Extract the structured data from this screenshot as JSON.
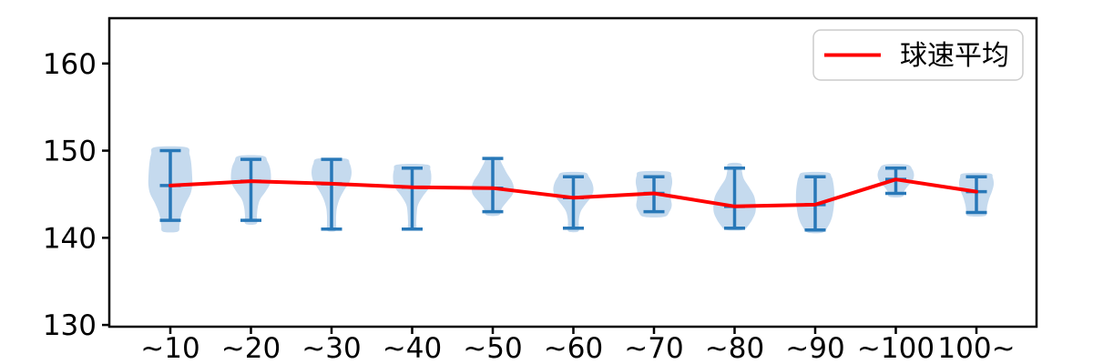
{
  "chart_data": {
    "type": "violin",
    "title": "",
    "xlabel": "",
    "ylabel": "",
    "grid": false,
    "categories": [
      "~10",
      "~20",
      "~30",
      "~40",
      "~50",
      "~60",
      "~70",
      "~80",
      "~90",
      "~100",
      "100~"
    ],
    "yticks": [
      130,
      140,
      150,
      160
    ],
    "ylim": [
      129.8,
      165.2
    ],
    "legend": {
      "label": "球速平均",
      "position": "upper right",
      "line_color": "#ff0000"
    },
    "mean_line": {
      "name": "球速平均",
      "color": "#ff0000",
      "values": [
        146.0,
        146.5,
        146.2,
        145.8,
        145.7,
        144.6,
        145.1,
        143.6,
        143.8,
        146.7,
        145.3
      ]
    },
    "violins": [
      {
        "category": "~10",
        "min": 142.0,
        "max": 150.0,
        "mean": 146.0,
        "profile": [
          [
            150.4,
            17
          ],
          [
            149.6,
            21
          ],
          [
            148.5,
            23
          ],
          [
            147.0,
            24
          ],
          [
            146.0,
            24
          ],
          [
            145.0,
            22
          ],
          [
            144.0,
            17
          ],
          [
            143.0,
            13
          ],
          [
            142.2,
            11
          ],
          [
            141.4,
            10
          ],
          [
            140.7,
            8
          ]
        ]
      },
      {
        "category": "~20",
        "min": 142.0,
        "max": 149.0,
        "mean": 146.5,
        "profile": [
          [
            149.4,
            13
          ],
          [
            148.8,
            18
          ],
          [
            148.0,
            21
          ],
          [
            147.0,
            22
          ],
          [
            146.2,
            21
          ],
          [
            145.3,
            16
          ],
          [
            144.4,
            10
          ],
          [
            143.5,
            7.5
          ],
          [
            142.5,
            6.5
          ],
          [
            141.6,
            6
          ]
        ]
      },
      {
        "category": "~30",
        "min": 141.0,
        "max": 149.0,
        "mean": 146.2,
        "profile": [
          [
            149.1,
            15
          ],
          [
            148.5,
            20
          ],
          [
            147.5,
            22
          ],
          [
            146.5,
            20
          ],
          [
            145.5,
            14
          ],
          [
            144.5,
            9
          ],
          [
            143.5,
            6
          ],
          [
            142.5,
            5
          ],
          [
            141.5,
            5
          ],
          [
            140.8,
            4.5
          ]
        ]
      },
      {
        "category": "~40",
        "min": 141.0,
        "max": 148.0,
        "mean": 145.8,
        "profile": [
          [
            148.4,
            16
          ],
          [
            147.8,
            20
          ],
          [
            146.8,
            21
          ],
          [
            145.8,
            19
          ],
          [
            144.8,
            12
          ],
          [
            143.8,
            6.5
          ],
          [
            142.8,
            5
          ],
          [
            141.8,
            4.5
          ],
          [
            141.0,
            4
          ]
        ]
      },
      {
        "category": "~50",
        "min": 143.0,
        "max": 149.1,
        "mean": 145.7,
        "profile": [
          [
            149.2,
            6
          ],
          [
            148.5,
            10
          ],
          [
            147.5,
            15
          ],
          [
            146.5,
            21
          ],
          [
            145.8,
            23
          ],
          [
            145.0,
            22
          ],
          [
            144.2,
            16
          ],
          [
            143.4,
            10
          ],
          [
            142.6,
            7
          ]
        ]
      },
      {
        "category": "~60",
        "min": 141.1,
        "max": 147.0,
        "mean": 144.6,
        "profile": [
          [
            147.5,
            12
          ],
          [
            147.0,
            17
          ],
          [
            146.2,
            21
          ],
          [
            145.4,
            22
          ],
          [
            144.6,
            19
          ],
          [
            143.8,
            13
          ],
          [
            143.0,
            8
          ],
          [
            142.0,
            6
          ],
          [
            141.2,
            6
          ],
          [
            140.7,
            5
          ]
        ]
      },
      {
        "category": "~70",
        "min": 143.0,
        "max": 147.0,
        "mean": 145.1,
        "profile": [
          [
            147.6,
            15
          ],
          [
            147.1,
            19
          ],
          [
            146.3,
            20
          ],
          [
            145.4,
            18.5
          ],
          [
            144.5,
            18.5
          ],
          [
            143.7,
            19.5
          ],
          [
            143.0,
            17
          ],
          [
            142.4,
            11
          ]
        ]
      },
      {
        "category": "~80",
        "min": 141.1,
        "max": 148.0,
        "mean": 143.6,
        "profile": [
          [
            148.5,
            7
          ],
          [
            147.7,
            8
          ],
          [
            146.8,
            10
          ],
          [
            145.8,
            16
          ],
          [
            144.9,
            21
          ],
          [
            144.0,
            23
          ],
          [
            143.0,
            23
          ],
          [
            142.2,
            20
          ],
          [
            141.4,
            15
          ],
          [
            140.9,
            9
          ]
        ]
      },
      {
        "category": "~90",
        "min": 140.9,
        "max": 147.0,
        "mean": 143.8,
        "profile": [
          [
            147.5,
            13
          ],
          [
            147.0,
            18
          ],
          [
            146.2,
            20
          ],
          [
            145.2,
            21
          ],
          [
            144.2,
            21
          ],
          [
            143.2,
            20
          ],
          [
            142.2,
            18
          ],
          [
            141.3,
            14
          ],
          [
            140.6,
            8
          ]
        ]
      },
      {
        "category": "~100",
        "min": 145.1,
        "max": 148.0,
        "mean": 146.7,
        "profile": [
          [
            148.4,
            12
          ],
          [
            147.9,
            18
          ],
          [
            147.2,
            20
          ],
          [
            146.5,
            18
          ],
          [
            145.9,
            13
          ],
          [
            145.3,
            9
          ],
          [
            144.7,
            7
          ]
        ]
      },
      {
        "category": "100~",
        "min": 142.9,
        "max": 147.0,
        "mean": 145.3,
        "profile": [
          [
            147.4,
            14
          ],
          [
            146.9,
            18
          ],
          [
            146.1,
            19
          ],
          [
            145.3,
            17
          ],
          [
            144.5,
            14
          ],
          [
            143.7,
            12
          ],
          [
            143.0,
            11
          ],
          [
            142.5,
            9
          ]
        ]
      }
    ],
    "colors": {
      "violin_body": "#c5daee",
      "violin_lines": "#2878b8",
      "mean_line": "#ff0000",
      "axis": "#000000",
      "legend_border": "#cccccc",
      "background": "#ffffff"
    }
  }
}
